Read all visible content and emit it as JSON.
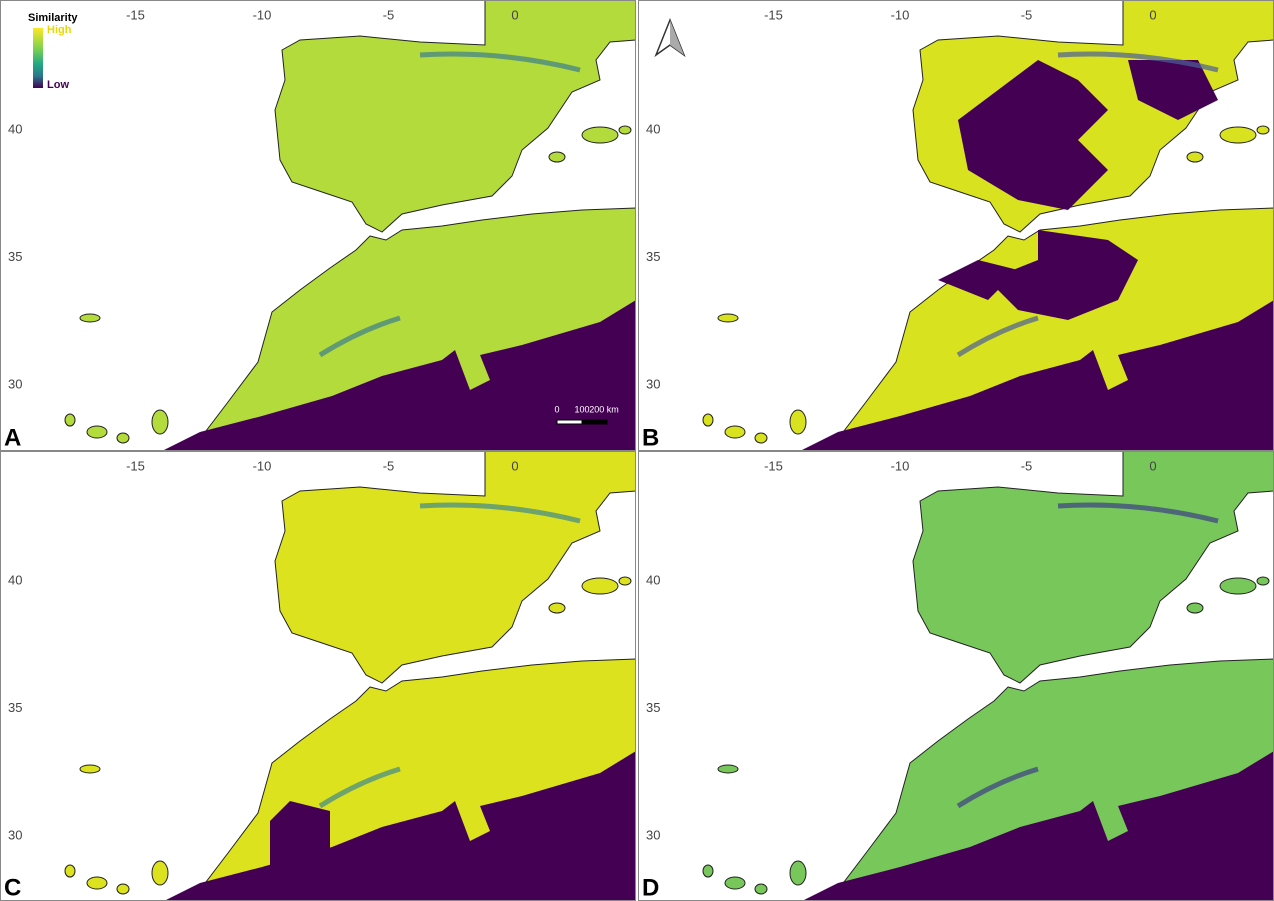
{
  "legend": {
    "title": "Similarity",
    "high": "High",
    "low": "Low"
  },
  "lon_ticks": [
    -15,
    -10,
    -5,
    0
  ],
  "lat_ticks": [
    40,
    35,
    30
  ],
  "scale_bar": {
    "labels": [
      "0",
      "100",
      "200 km"
    ]
  },
  "panels": [
    {
      "label": "A"
    },
    {
      "label": "B"
    },
    {
      "label": "C"
    },
    {
      "label": "D"
    }
  ]
}
